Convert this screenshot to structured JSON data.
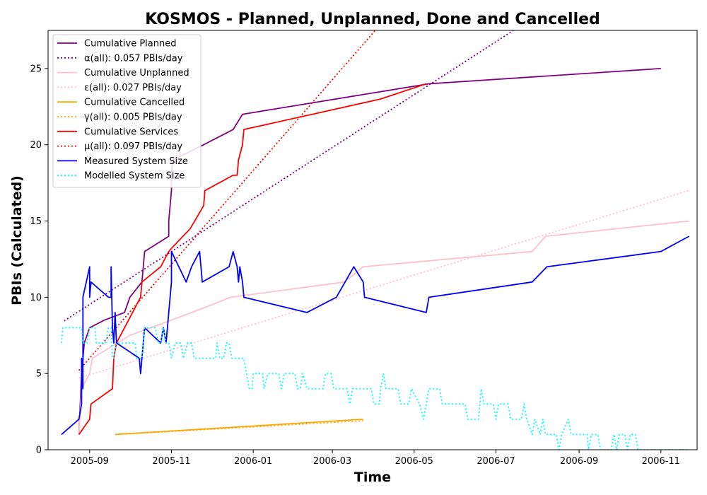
{
  "chart_data": {
    "type": "line",
    "title": "KOSMOS - Planned, Unplanned, Done  and Cancelled",
    "xlabel": "Time",
    "ylabel": "PBIs (Calculated)",
    "xlim": [
      "2005-08-01",
      "2006-11-28"
    ],
    "ylim": [
      0,
      27.5
    ],
    "x_ticks": [
      {
        "date": "2005-09-01",
        "label": "2005-09"
      },
      {
        "date": "2005-11-01",
        "label": "2005-11"
      },
      {
        "date": "2006-01-01",
        "label": "2006-01"
      },
      {
        "date": "2006-03-01",
        "label": "2006-03"
      },
      {
        "date": "2006-05-01",
        "label": "2006-05"
      },
      {
        "date": "2006-07-01",
        "label": "2006-07"
      },
      {
        "date": "2006-09-01",
        "label": "2006-09"
      },
      {
        "date": "2006-11-01",
        "label": "2006-11"
      }
    ],
    "y_ticks": [
      0,
      5,
      10,
      15,
      20,
      25
    ],
    "grid": false,
    "legend_position": "top-left",
    "series": [
      {
        "name": "Cumulative Planned",
        "color": "#800080",
        "style": "solid",
        "points": [
          [
            "2005-08-24",
            1
          ],
          [
            "2005-08-26",
            5
          ],
          [
            "2005-08-28",
            7
          ],
          [
            "2005-09-01",
            8
          ],
          [
            "2005-09-12",
            8.5
          ],
          [
            "2005-09-27",
            9
          ],
          [
            "2005-10-01",
            10
          ],
          [
            "2005-10-10",
            11
          ],
          [
            "2005-10-12",
            13
          ],
          [
            "2005-10-30",
            14
          ],
          [
            "2005-10-30",
            15
          ],
          [
            "2005-11-01",
            17
          ],
          [
            "2005-11-01",
            18
          ],
          [
            "2005-11-02",
            19
          ],
          [
            "2005-11-25",
            20
          ],
          [
            "2005-12-17",
            21
          ],
          [
            "2005-12-24",
            22
          ],
          [
            "2006-05-12",
            24
          ],
          [
            "2006-11-01",
            25
          ]
        ]
      },
      {
        "name": "α(all): 0.057 PBIs/day",
        "color": "#800080",
        "style": "dotted",
        "points": [
          [
            "2005-08-13",
            8.45
          ],
          [
            "2006-07-14",
            27.5
          ]
        ]
      },
      {
        "name": "Cumulative Unplanned",
        "color": "#ffc0cb",
        "style": "solid",
        "points": [
          [
            "2005-08-24",
            1
          ],
          [
            "2005-08-26",
            4
          ],
          [
            "2005-09-01",
            5
          ],
          [
            "2005-09-03",
            6
          ],
          [
            "2005-10-01",
            7.5
          ],
          [
            "2005-11-01",
            8.5
          ],
          [
            "2005-12-01",
            9.5
          ],
          [
            "2005-12-15",
            10
          ],
          [
            "2006-03-10",
            11
          ],
          [
            "2006-03-24",
            12
          ],
          [
            "2006-07-28",
            13
          ],
          [
            "2006-08-07",
            14
          ],
          [
            "2006-11-22",
            15
          ]
        ]
      },
      {
        "name": "ε(all): 0.027 PBIs/day",
        "color": "#ffc0cb",
        "style": "dotted",
        "points": [
          [
            "2005-08-24",
            4.7
          ],
          [
            "2006-11-22",
            17
          ]
        ]
      },
      {
        "name": "Cumulative Cancelled",
        "color": "#ffa500",
        "style": "solid",
        "points": [
          [
            "2005-09-20",
            1
          ],
          [
            "2006-03-24",
            2
          ]
        ]
      },
      {
        "name": "γ(all): 0.005 PBIs/day",
        "color": "#ffa500",
        "style": "dotted",
        "points": [
          [
            "2005-09-20",
            1
          ],
          [
            "2006-03-24",
            1.9
          ]
        ]
      },
      {
        "name": "Cumulative Services",
        "color": "#ff0000",
        "style": "solid",
        "points": [
          [
            "2005-08-24",
            1
          ],
          [
            "2005-09-01",
            2
          ],
          [
            "2005-09-02",
            3
          ],
          [
            "2005-09-18",
            4
          ],
          [
            "2005-09-19",
            6
          ],
          [
            "2005-09-21",
            7
          ],
          [
            "2005-10-09",
            10
          ],
          [
            "2005-10-10",
            11
          ],
          [
            "2005-10-24",
            12
          ],
          [
            "2005-10-30",
            13
          ],
          [
            "2005-11-02",
            13.3
          ],
          [
            "2005-11-15",
            14.5
          ],
          [
            "2005-11-25",
            16
          ],
          [
            "2005-11-26",
            17
          ],
          [
            "2005-12-17",
            18
          ],
          [
            "2005-12-20",
            18
          ],
          [
            "2005-12-21",
            19
          ],
          [
            "2005-12-24",
            20
          ],
          [
            "2005-12-25",
            21
          ],
          [
            "2006-02-14",
            22
          ],
          [
            "2006-04-06",
            23
          ],
          [
            "2006-05-10",
            24
          ]
        ]
      },
      {
        "name": "μ(all): 0.097 PBIs/day",
        "color": "#ff0000",
        "style": "dotted",
        "points": [
          [
            "2005-08-24",
            5.2
          ],
          [
            "2006-04-02",
            27.5
          ]
        ]
      },
      {
        "name": "Measured System Size",
        "color": "#0000ff",
        "style": "solid",
        "points": [
          [
            "2005-08-11",
            1
          ],
          [
            "2005-08-24",
            2
          ],
          [
            "2005-08-26",
            3
          ],
          [
            "2005-08-26",
            6
          ],
          [
            "2005-08-27",
            4
          ],
          [
            "2005-08-27",
            10
          ],
          [
            "2005-09-01",
            12
          ],
          [
            "2005-09-01",
            10
          ],
          [
            "2005-09-02",
            11
          ],
          [
            "2005-09-15",
            10
          ],
          [
            "2005-09-17",
            10
          ],
          [
            "2005-09-17",
            12
          ],
          [
            "2005-09-18",
            8
          ],
          [
            "2005-09-19",
            7
          ],
          [
            "2005-09-20",
            9
          ],
          [
            "2005-09-21",
            7
          ],
          [
            "2005-10-08",
            6
          ],
          [
            "2005-10-09",
            5
          ],
          [
            "2005-10-10",
            6
          ],
          [
            "2005-10-12",
            8
          ],
          [
            "2005-10-24",
            7
          ],
          [
            "2005-10-26",
            8
          ],
          [
            "2005-10-28",
            7
          ],
          [
            "2005-10-30",
            9
          ],
          [
            "2005-11-01",
            11
          ],
          [
            "2005-11-01",
            13
          ],
          [
            "2005-11-12",
            11
          ],
          [
            "2005-11-16",
            12
          ],
          [
            "2005-11-22",
            13
          ],
          [
            "2005-11-23",
            12
          ],
          [
            "2005-11-24",
            11
          ],
          [
            "2005-12-14",
            12
          ],
          [
            "2005-12-17",
            13
          ],
          [
            "2005-12-20",
            12
          ],
          [
            "2005-12-21",
            11
          ],
          [
            "2005-12-22",
            12
          ],
          [
            "2005-12-24",
            11
          ],
          [
            "2005-12-25",
            10
          ],
          [
            "2006-02-10",
            9
          ],
          [
            "2006-03-04",
            10
          ],
          [
            "2006-03-17",
            12
          ],
          [
            "2006-03-24",
            11
          ],
          [
            "2006-03-25",
            10
          ],
          [
            "2006-05-10",
            9
          ],
          [
            "2006-05-12",
            10
          ],
          [
            "2006-07-28",
            11
          ],
          [
            "2006-08-08",
            12
          ],
          [
            "2006-11-01",
            13
          ],
          [
            "2006-11-22",
            14
          ]
        ]
      },
      {
        "name": "Modelled System Size",
        "color": "#00ffff",
        "style": "dotted",
        "points": [
          [
            "2005-08-11",
            7
          ],
          [
            "2005-08-12",
            8
          ],
          [
            "2005-08-26",
            8
          ],
          [
            "2005-08-27",
            7
          ],
          [
            "2005-08-30",
            7
          ],
          [
            "2005-09-01",
            8
          ],
          [
            "2005-09-05",
            8
          ],
          [
            "2005-09-06",
            7
          ],
          [
            "2005-09-13",
            7
          ],
          [
            "2005-09-15",
            8
          ],
          [
            "2005-09-17",
            8
          ],
          [
            "2005-09-18",
            6
          ],
          [
            "2005-09-19",
            6
          ],
          [
            "2005-09-21",
            7
          ],
          [
            "2005-10-05",
            7
          ],
          [
            "2005-10-06",
            6
          ],
          [
            "2005-10-10",
            6
          ],
          [
            "2005-10-12",
            8
          ],
          [
            "2005-10-20",
            8
          ],
          [
            "2005-10-22",
            7
          ],
          [
            "2005-10-24",
            7
          ],
          [
            "2005-10-26",
            8
          ],
          [
            "2005-10-28",
            7
          ],
          [
            "2005-10-30",
            7
          ],
          [
            "2005-11-01",
            6
          ],
          [
            "2005-11-04",
            7
          ],
          [
            "2005-11-08",
            7
          ],
          [
            "2005-11-10",
            6
          ],
          [
            "2005-11-13",
            7
          ],
          [
            "2005-11-16",
            7
          ],
          [
            "2005-11-18",
            6
          ],
          [
            "2005-12-04",
            6
          ],
          [
            "2005-12-05",
            7
          ],
          [
            "2005-12-07",
            6
          ],
          [
            "2005-12-10",
            6
          ],
          [
            "2005-12-12",
            7
          ],
          [
            "2005-12-14",
            7
          ],
          [
            "2005-12-16",
            6
          ],
          [
            "2005-12-25",
            6
          ],
          [
            "2005-12-27",
            5
          ],
          [
            "2005-12-29",
            4
          ],
          [
            "2005-12-31",
            4
          ],
          [
            "2006-01-01",
            5
          ],
          [
            "2006-01-08",
            5
          ],
          [
            "2006-01-09",
            4
          ],
          [
            "2006-01-12",
            5
          ],
          [
            "2006-01-20",
            5
          ],
          [
            "2006-01-22",
            4
          ],
          [
            "2006-01-24",
            5
          ],
          [
            "2006-02-01",
            5
          ],
          [
            "2006-02-03",
            4
          ],
          [
            "2006-02-05",
            4
          ],
          [
            "2006-02-07",
            5
          ],
          [
            "2006-02-10",
            4
          ],
          [
            "2006-02-22",
            4
          ],
          [
            "2006-02-24",
            5
          ],
          [
            "2006-02-28",
            5
          ],
          [
            "2006-03-02",
            4
          ],
          [
            "2006-03-12",
            4
          ],
          [
            "2006-03-14",
            3
          ],
          [
            "2006-03-16",
            4
          ],
          [
            "2006-03-30",
            4
          ],
          [
            "2006-04-01",
            3
          ],
          [
            "2006-04-05",
            3
          ],
          [
            "2006-04-06",
            4
          ],
          [
            "2006-04-08",
            5
          ],
          [
            "2006-04-10",
            4
          ],
          [
            "2006-04-19",
            4
          ],
          [
            "2006-04-21",
            3
          ],
          [
            "2006-04-27",
            3
          ],
          [
            "2006-04-29",
            4
          ],
          [
            "2006-05-05",
            3
          ],
          [
            "2006-05-08",
            2
          ],
          [
            "2006-05-10",
            3
          ],
          [
            "2006-05-12",
            4
          ],
          [
            "2006-05-20",
            4
          ],
          [
            "2006-05-22",
            3
          ],
          [
            "2006-06-08",
            3
          ],
          [
            "2006-06-10",
            2
          ],
          [
            "2006-06-18",
            2
          ],
          [
            "2006-06-20",
            4
          ],
          [
            "2006-06-22",
            3
          ],
          [
            "2006-06-29",
            3
          ],
          [
            "2006-07-01",
            2
          ],
          [
            "2006-07-03",
            3
          ],
          [
            "2006-07-10",
            3
          ],
          [
            "2006-07-12",
            2
          ],
          [
            "2006-07-20",
            2
          ],
          [
            "2006-07-22",
            3
          ],
          [
            "2006-07-24",
            2
          ],
          [
            "2006-07-28",
            1
          ],
          [
            "2006-07-30",
            2
          ],
          [
            "2006-08-03",
            1
          ],
          [
            "2006-08-05",
            2
          ],
          [
            "2006-08-07",
            1
          ],
          [
            "2006-08-15",
            1
          ],
          [
            "2006-08-17",
            0
          ],
          [
            "2006-08-19",
            1
          ],
          [
            "2006-08-24",
            2
          ],
          [
            "2006-08-26",
            1
          ],
          [
            "2006-09-07",
            1
          ],
          [
            "2006-09-08",
            0
          ],
          [
            "2006-09-10",
            1
          ],
          [
            "2006-09-15",
            1
          ],
          [
            "2006-09-17",
            0
          ],
          [
            "2006-09-25",
            0
          ],
          [
            "2006-09-27",
            1
          ],
          [
            "2006-09-29",
            0
          ],
          [
            "2006-10-01",
            1
          ],
          [
            "2006-10-05",
            1
          ],
          [
            "2006-10-07",
            0
          ],
          [
            "2006-10-09",
            1
          ],
          [
            "2006-10-13",
            1
          ],
          [
            "2006-10-15",
            0
          ],
          [
            "2006-11-22",
            0
          ]
        ]
      }
    ]
  }
}
